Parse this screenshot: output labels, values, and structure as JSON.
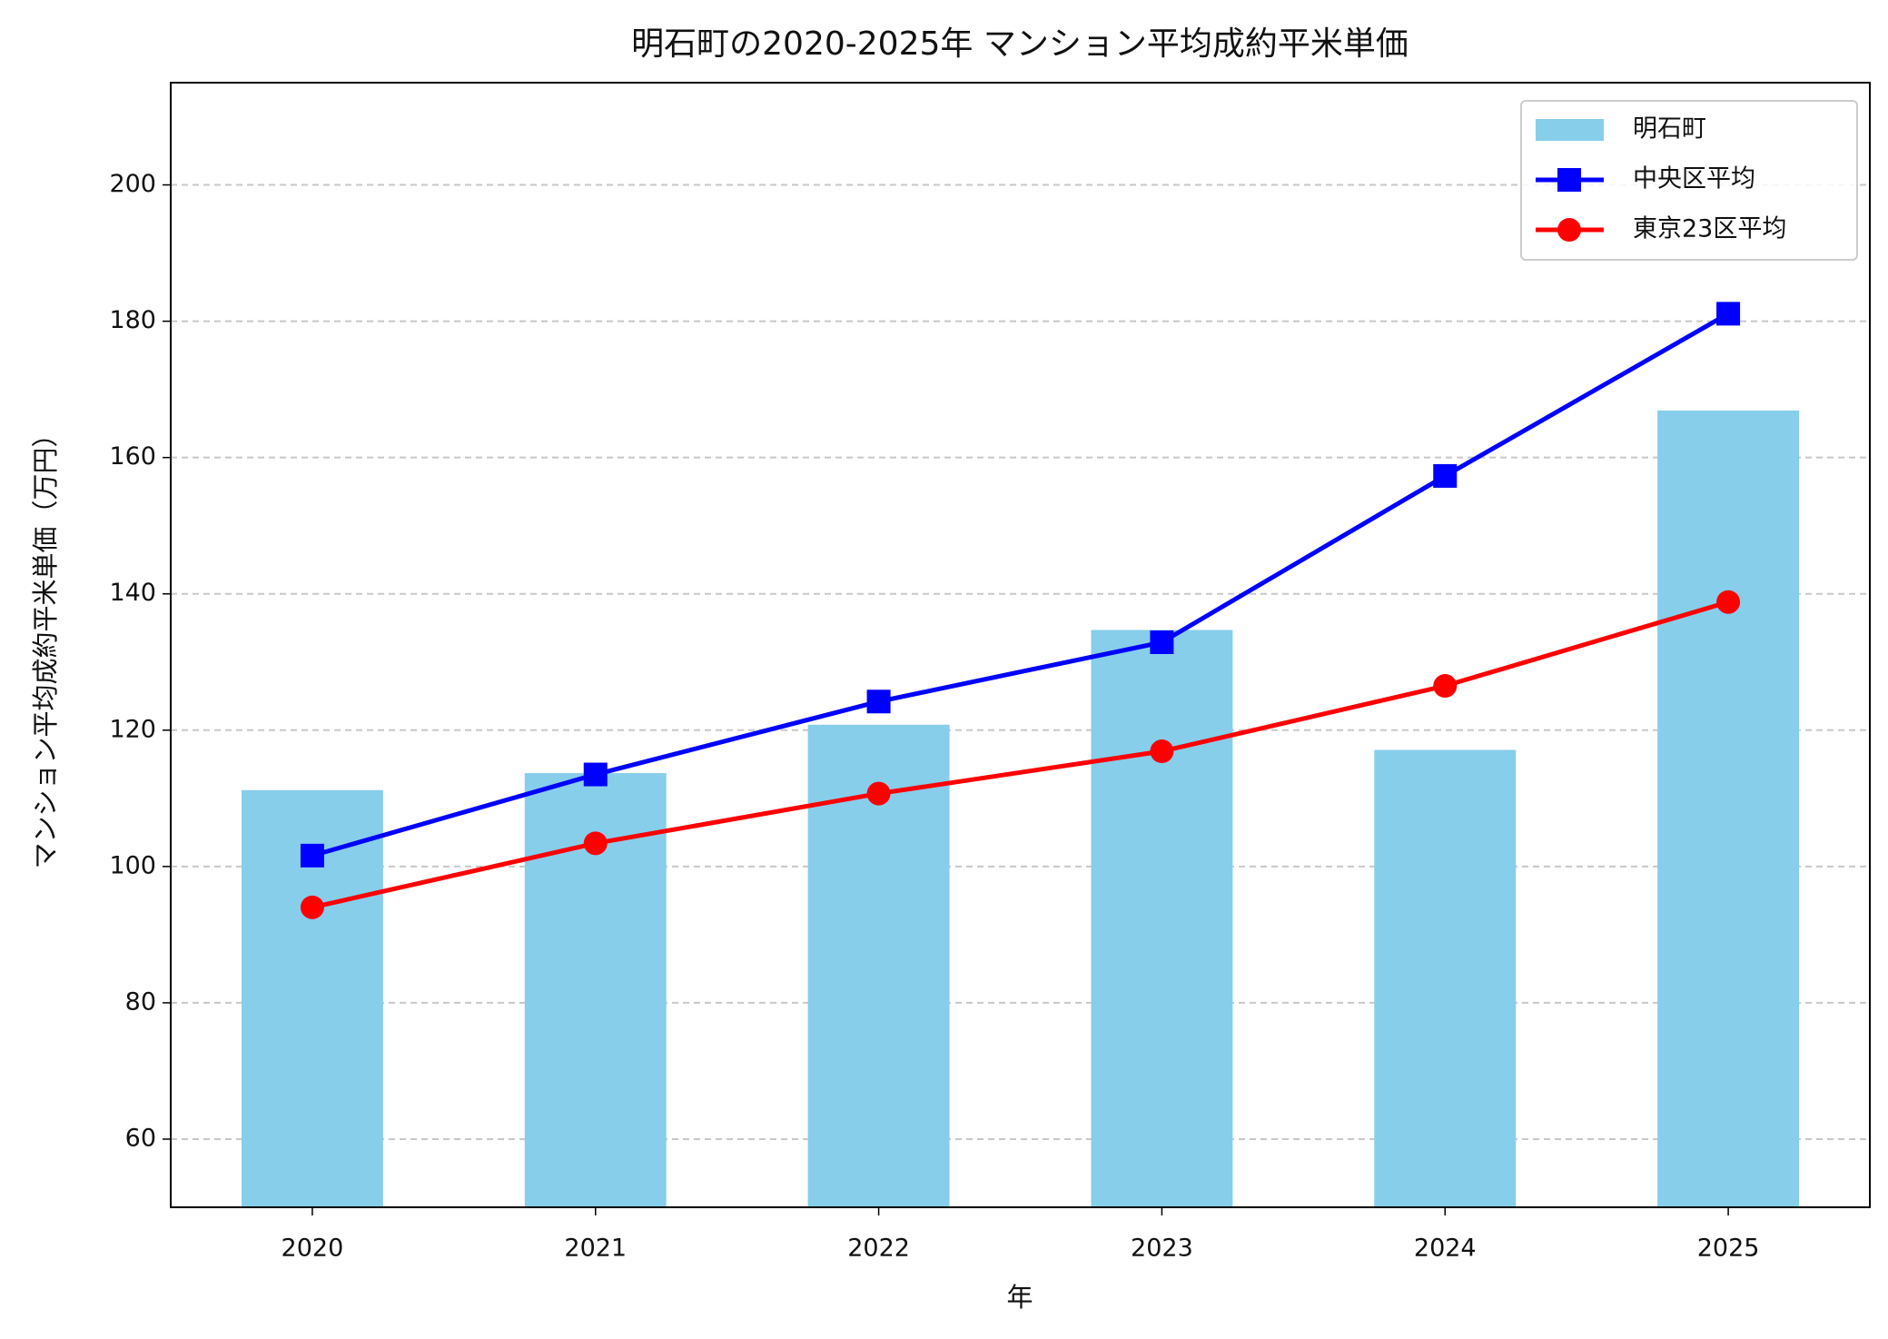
{
  "chart_data": {
    "type": "bar",
    "title": "明石町の2020-2025年 マンション平均成約平米単価",
    "x_label": "年",
    "y_label": "マンション平均成約平米単価（万円）",
    "categories": [
      "2020",
      "2021",
      "2022",
      "2023",
      "2024",
      "2025"
    ],
    "series": [
      {
        "name": "明石町",
        "type": "bar",
        "color": "#87ceeb",
        "values": [
          111.2,
          113.7,
          120.8,
          134.7,
          117.1,
          166.9
        ]
      },
      {
        "name": "中央区平均",
        "type": "line",
        "marker": "square",
        "color": "#0000ff",
        "values": [
          101.6,
          113.5,
          124.2,
          132.9,
          157.3,
          181.1
        ]
      },
      {
        "name": "東京23区平均",
        "type": "line",
        "marker": "circle",
        "color": "#ff0000",
        "values": [
          94.0,
          103.4,
          110.7,
          116.9,
          126.5,
          138.8
        ]
      }
    ],
    "ylim": [
      50,
      215
    ],
    "yticks": [
      60,
      80,
      100,
      120,
      140,
      160,
      180,
      200
    ],
    "grid": true,
    "legend": "upper-right"
  }
}
